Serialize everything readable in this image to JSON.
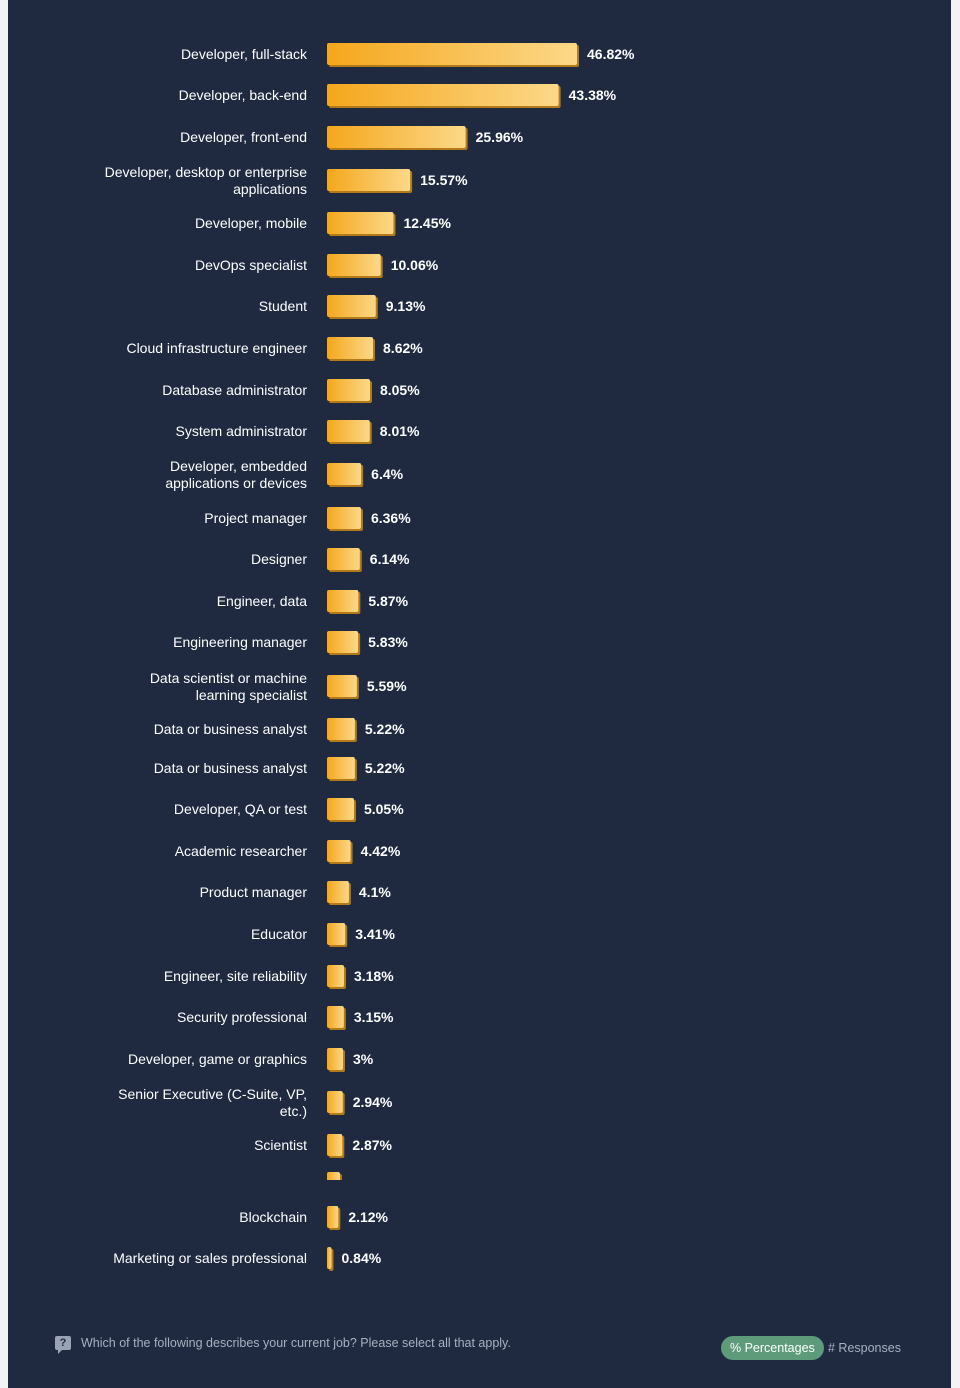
{
  "chart_data": {
    "type": "bar",
    "orientation": "horizontal",
    "categories": [
      [
        "Developer, full-stack"
      ],
      [
        "Developer, back-end"
      ],
      [
        "Developer, front-end"
      ],
      [
        "Developer, desktop or enterprise",
        "applications"
      ],
      [
        "Developer, mobile"
      ],
      [
        "DevOps specialist"
      ],
      [
        "Student"
      ],
      [
        "Cloud infrastructure engineer"
      ],
      [
        "Database administrator"
      ],
      [
        "System administrator"
      ],
      [
        "Developer, embedded",
        "applications or devices"
      ],
      [
        "Project manager"
      ],
      [
        "Designer"
      ],
      [
        "Engineer, data"
      ],
      [
        "Engineering manager"
      ],
      [
        "Data scientist or machine",
        "learning specialist"
      ],
      [
        "Data or business analyst"
      ],
      [
        "Data or business analyst"
      ],
      [
        "Developer, QA or test"
      ],
      [
        "Academic researcher"
      ],
      [
        "Product manager"
      ],
      [
        "Educator"
      ],
      [
        "Engineer, site reliability"
      ],
      [
        "Security professional"
      ],
      [
        "Developer, game or graphics"
      ],
      [
        "Senior Executive (C-Suite, VP,",
        "etc.)"
      ],
      [
        "Scientist"
      ],
      null,
      [
        "Blockchain"
      ],
      [
        "Marketing or sales professional"
      ]
    ],
    "values": [
      46.82,
      43.38,
      25.96,
      15.57,
      12.45,
      10.06,
      9.13,
      8.62,
      8.05,
      8.01,
      6.4,
      6.36,
      6.14,
      5.87,
      5.83,
      5.59,
      5.22,
      5.22,
      5.05,
      4.42,
      4.1,
      3.41,
      3.18,
      3.15,
      3,
      2.94,
      2.87,
      2.43,
      2.12,
      0.84
    ],
    "value_labels": [
      "46.82%",
      "43.38%",
      "25.96%",
      "15.57%",
      "12.45%",
      "10.06%",
      "9.13%",
      "8.62%",
      "8.05%",
      "8.01%",
      "6.4%",
      "6.36%",
      "6.14%",
      "5.87%",
      "5.83%",
      "5.59%",
      "5.22%",
      "5.22%",
      "5.05%",
      "4.42%",
      "4.1%",
      "3.41%",
      "3.18%",
      "3.15%",
      "3%",
      "2.94%",
      "2.87%",
      "",
      "2.12%",
      "0.84%"
    ],
    "unit": "%",
    "xlim": [
      0,
      100
    ],
    "title": "",
    "xlabel": "",
    "ylabel": "",
    "grid": false,
    "colors": {
      "bar_start": "#f5a71c",
      "bar_end": "#fcd888",
      "bar_shadow": "#b27a18",
      "background": "#1f2a40"
    }
  },
  "footer": {
    "question_icon": "question-icon",
    "question": "Which of the following describes your current job? Please select all that apply.",
    "toggle_percentages": "% Percentages",
    "toggle_responses": "# Responses"
  }
}
